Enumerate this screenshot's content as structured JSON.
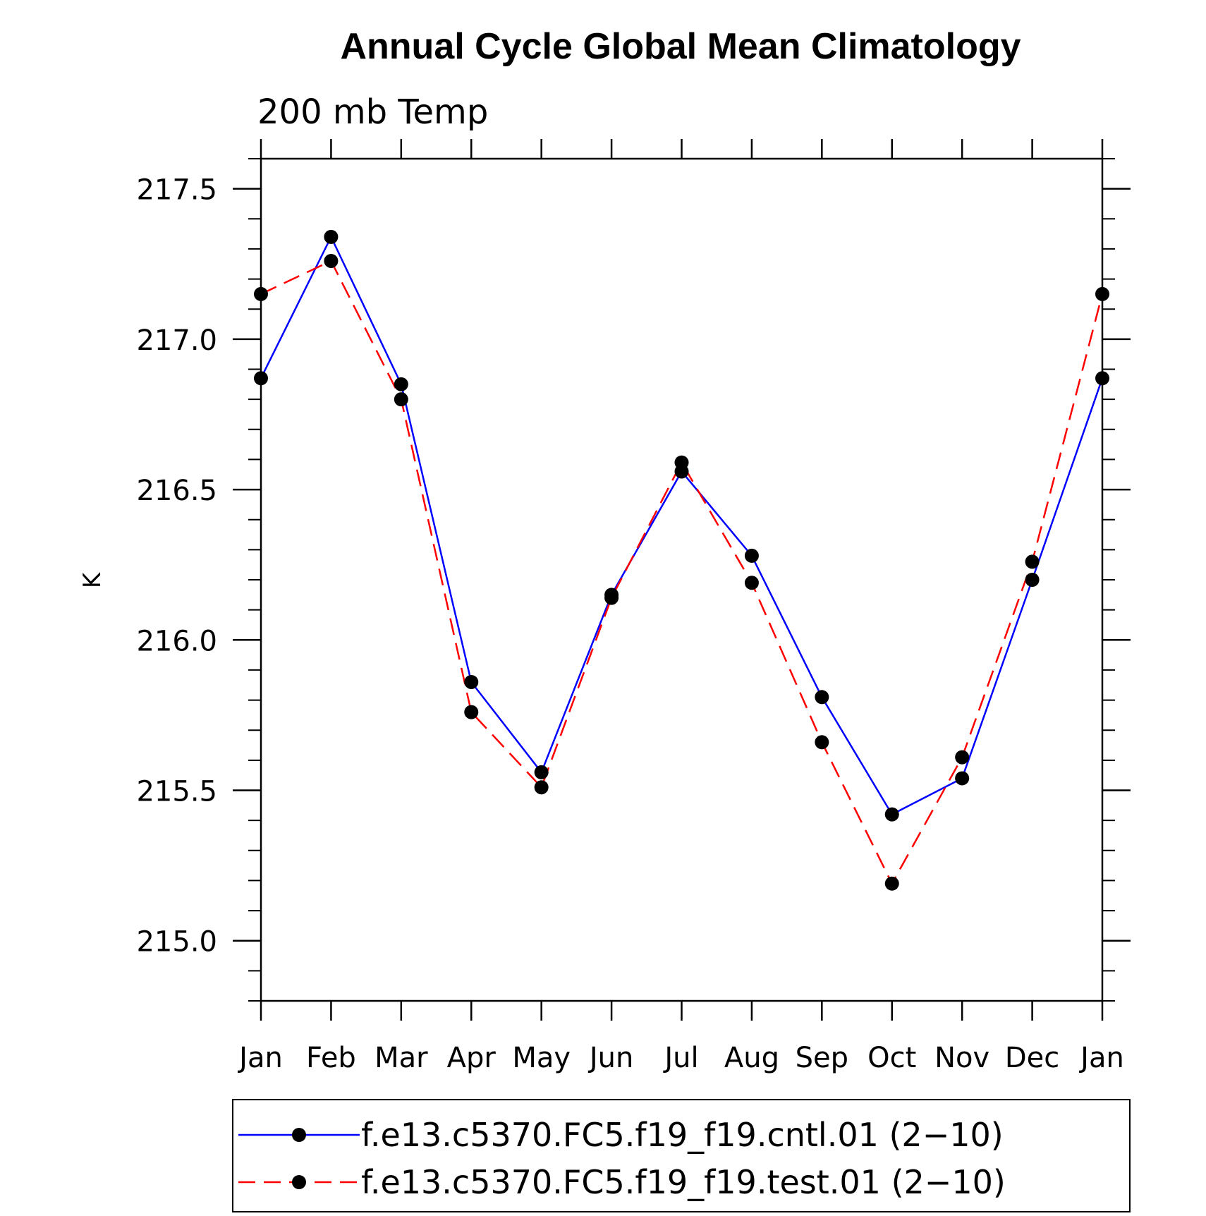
{
  "chart_data": {
    "type": "line",
    "title": "Annual Cycle Global Mean Climatology",
    "subtitle": "200 mb Temp",
    "xlabel": "",
    "ylabel": "K",
    "categories": [
      "Jan",
      "Feb",
      "Mar",
      "Apr",
      "May",
      "Jun",
      "Jul",
      "Aug",
      "Sep",
      "Oct",
      "Nov",
      "Dec",
      "Jan"
    ],
    "ylim": [
      214.8,
      217.6
    ],
    "yticks": [
      "215.0",
      "215.5",
      "216.0",
      "216.5",
      "217.0",
      "217.5"
    ],
    "grid": false,
    "legend_position": "bottom",
    "series": [
      {
        "name": "f.e13.c5370.FC5.f19_f19.cntl.01 (2−10)",
        "color": "#0000ff",
        "dash": "solid",
        "marker": "circle",
        "values": [
          216.87,
          217.34,
          216.85,
          215.86,
          215.56,
          216.15,
          216.56,
          216.28,
          215.81,
          215.42,
          215.54,
          216.2,
          216.87
        ]
      },
      {
        "name": "f.e13.c5370.FC5.f19_f19.test.01 (2−10)",
        "color": "#ff0000",
        "dash": "dashed",
        "marker": "circle",
        "values": [
          217.15,
          217.26,
          216.8,
          215.76,
          215.51,
          216.14,
          216.59,
          216.19,
          215.66,
          215.19,
          215.61,
          216.26,
          217.15
        ]
      }
    ]
  }
}
